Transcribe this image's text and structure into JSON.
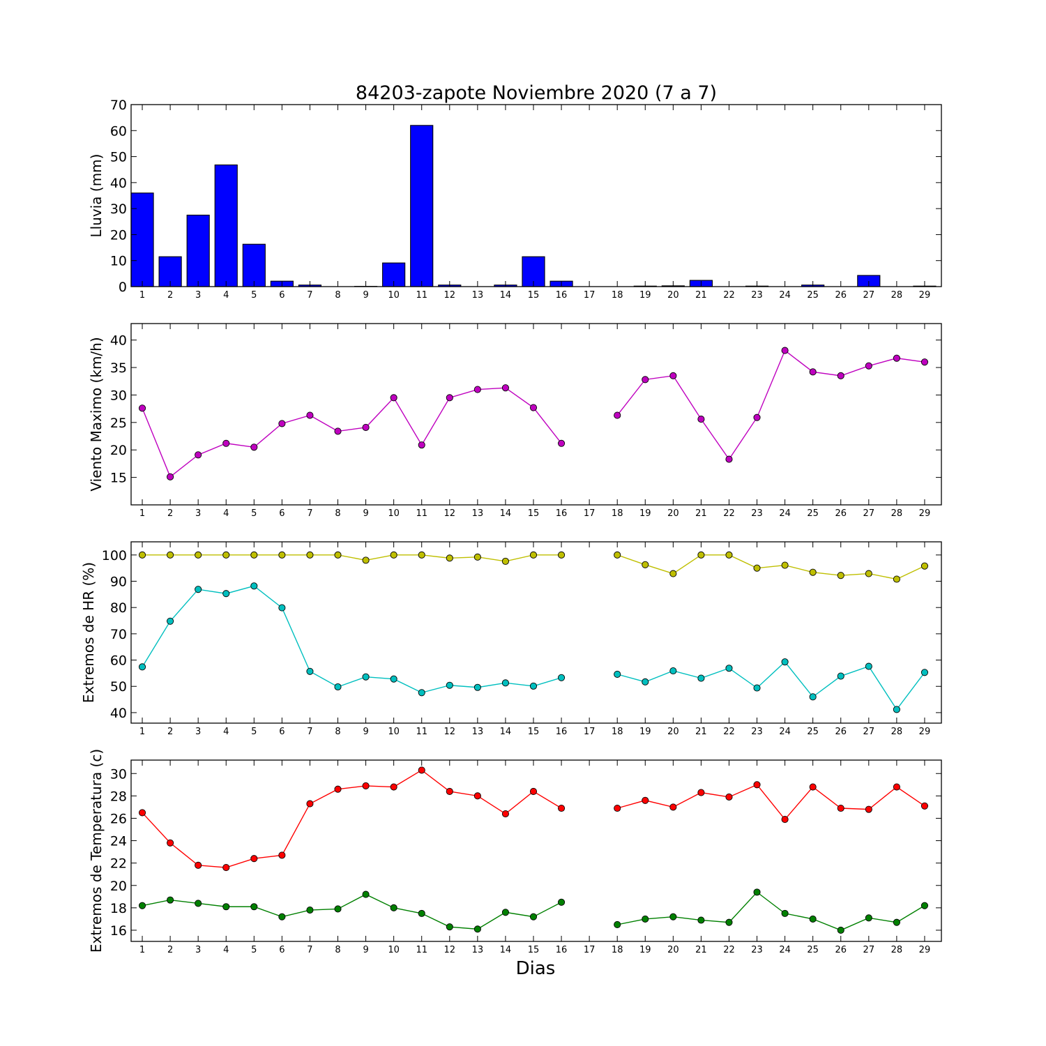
{
  "figure": {
    "title": "84203-zapote Noviembre 2020  (7 a 7)",
    "xlabel": "Dias"
  },
  "chart_data": [
    {
      "type": "bar",
      "ylabel": "Lluvia (mm)",
      "ylim": [
        0,
        70
      ],
      "yticks": [
        0,
        10,
        20,
        30,
        40,
        50,
        60,
        70
      ],
      "x_ticks": [
        1,
        2,
        3,
        4,
        5,
        6,
        7,
        8,
        9,
        10,
        11,
        12,
        13,
        14,
        15,
        16,
        17,
        18,
        19,
        20,
        21,
        22,
        23,
        24,
        25,
        26,
        27,
        28,
        29
      ],
      "categories": [
        1,
        2,
        3,
        4,
        5,
        6,
        7,
        8,
        9,
        10,
        11,
        12,
        13,
        14,
        15,
        16,
        17,
        18,
        19,
        20,
        21,
        22,
        23,
        24,
        25,
        26,
        27,
        28,
        29
      ],
      "series": [
        {
          "color": "#0000ff",
          "values": [
            36,
            11.5,
            27.5,
            46.8,
            16.3,
            2.1,
            0.6,
            0,
            0.1,
            9.1,
            62,
            0.6,
            0,
            0.6,
            11.5,
            2.1,
            0,
            0,
            0.2,
            0.3,
            2.4,
            0,
            0.2,
            0,
            0.6,
            0,
            4.3,
            0,
            0.2
          ]
        }
      ]
    },
    {
      "type": "line",
      "ylabel": "Viento Maximo (km/h)",
      "ylim": [
        10,
        43
      ],
      "yticks": [
        15,
        20,
        25,
        30,
        35,
        40
      ],
      "x_ticks": [
        1,
        2,
        3,
        4,
        5,
        6,
        7,
        8,
        9,
        10,
        11,
        12,
        13,
        14,
        15,
        16,
        17,
        18,
        19,
        20,
        21,
        22,
        23,
        24,
        25,
        26,
        27,
        28,
        29
      ],
      "series": [
        {
          "color": "#bf00bf",
          "values": [
            27.6,
            15.1,
            19.1,
            21.2,
            20.5,
            24.8,
            26.3,
            23.4,
            24.1,
            29.5,
            20.9,
            29.5,
            31.0,
            31.3,
            27.7,
            21.2,
            null,
            26.3,
            32.8,
            33.5,
            25.6,
            18.3,
            25.9,
            38.1,
            34.2,
            33.5,
            35.3,
            36.7,
            36.0
          ]
        }
      ]
    },
    {
      "type": "line",
      "ylabel": "Extremos de HR (%)",
      "ylim": [
        36,
        105
      ],
      "yticks": [
        40,
        50,
        60,
        70,
        80,
        90,
        100
      ],
      "x_ticks": [
        1,
        2,
        3,
        4,
        5,
        6,
        7,
        8,
        9,
        10,
        11,
        12,
        13,
        14,
        15,
        16,
        17,
        18,
        19,
        20,
        21,
        22,
        23,
        24,
        25,
        26,
        27,
        28,
        29
      ],
      "series": [
        {
          "color": "#bfbf00",
          "values": [
            100,
            100,
            100,
            100,
            100,
            100,
            100,
            100,
            98,
            100,
            100,
            98.8,
            99.2,
            97.6,
            100,
            100,
            null,
            100,
            96.3,
            92.9,
            100,
            100,
            95,
            96.1,
            93.4,
            92.2,
            92.9,
            90.8,
            95.8
          ]
        },
        {
          "color": "#00bfbf",
          "values": [
            57.4,
            74.8,
            86.9,
            85.3,
            88.2,
            79.9,
            55.7,
            49.8,
            53.6,
            52.8,
            47.6,
            50.4,
            49.6,
            51.3,
            50.1,
            53.3,
            null,
            54.6,
            51.7,
            55.9,
            53.1,
            56.9,
            49.4,
            59.3,
            46.0,
            53.9,
            57.6,
            41.2,
            55.3
          ]
        }
      ]
    },
    {
      "type": "line",
      "ylabel": "Extremos de Temperatura (c)",
      "ylim": [
        15,
        31.2
      ],
      "yticks": [
        16,
        18,
        20,
        22,
        24,
        26,
        28,
        30
      ],
      "x_ticks": [
        1,
        2,
        3,
        4,
        5,
        6,
        7,
        8,
        9,
        10,
        11,
        12,
        13,
        14,
        15,
        16,
        17,
        18,
        19,
        20,
        21,
        22,
        23,
        24,
        25,
        26,
        27,
        28,
        29
      ],
      "series": [
        {
          "color": "#ff0000",
          "values": [
            26.5,
            23.8,
            21.8,
            21.6,
            22.4,
            22.7,
            27.3,
            28.6,
            28.9,
            28.8,
            30.3,
            28.4,
            28.0,
            26.4,
            28.4,
            26.9,
            null,
            26.9,
            27.6,
            27.0,
            28.3,
            27.9,
            29.0,
            25.9,
            28.8,
            26.9,
            26.8,
            28.8,
            27.1
          ]
        },
        {
          "color": "#008000",
          "values": [
            18.2,
            18.7,
            18.4,
            18.1,
            18.1,
            17.2,
            17.8,
            17.9,
            19.2,
            18.0,
            17.5,
            16.3,
            16.1,
            17.6,
            17.2,
            18.5,
            null,
            16.5,
            17.0,
            17.2,
            16.9,
            16.7,
            19.4,
            17.5,
            17.0,
            16.0,
            17.1,
            16.7,
            18.2
          ]
        }
      ]
    }
  ]
}
